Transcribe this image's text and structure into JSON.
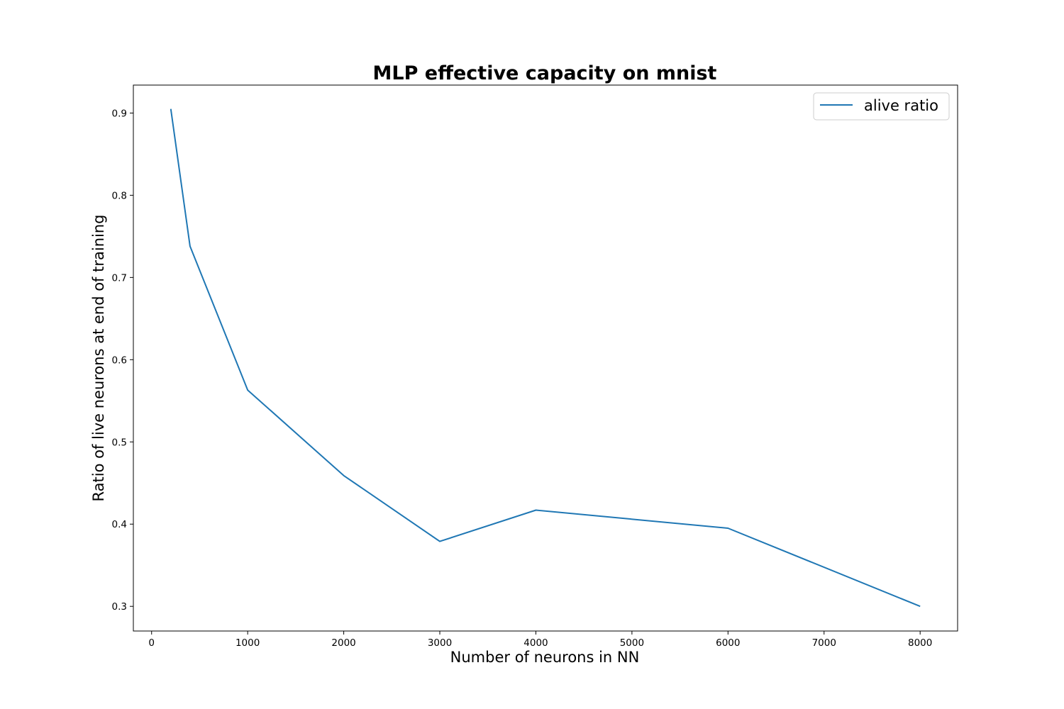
{
  "chart_data": {
    "type": "line",
    "title": "MLP effective capacity on mnist",
    "xlabel": "Number of neurons in NN",
    "ylabel": "Ratio of live neurons at end of training",
    "xlim": [
      -190,
      8390
    ],
    "ylim": [
      0.27,
      0.934
    ],
    "x_ticks": [
      0,
      1000,
      2000,
      3000,
      4000,
      5000,
      6000,
      7000,
      8000
    ],
    "x_tick_labels": [
      "0",
      "1000",
      "2000",
      "3000",
      "4000",
      "5000",
      "6000",
      "7000",
      "8000"
    ],
    "y_ticks": [
      0.3,
      0.4,
      0.5,
      0.6,
      0.7,
      0.8,
      0.9
    ],
    "y_tick_labels": [
      "0.3",
      "0.4",
      "0.5",
      "0.6",
      "0.7",
      "0.8",
      "0.9"
    ],
    "grid": false,
    "legend_position": "top-right",
    "series": [
      {
        "name": "alive ratio",
        "color": "#1f77b4",
        "x": [
          200,
          400,
          1000,
          2000,
          3000,
          4000,
          6000,
          8000
        ],
        "y": [
          0.905,
          0.738,
          0.563,
          0.459,
          0.379,
          0.417,
          0.395,
          0.3
        ]
      }
    ]
  }
}
